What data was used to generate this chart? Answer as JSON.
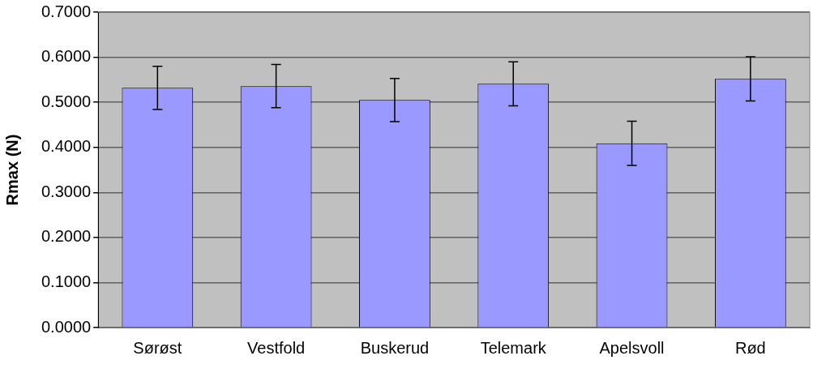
{
  "chart_data": {
    "type": "bar",
    "ylabel": "Rmax (N)",
    "categories": [
      "Sørøst",
      "Vestfold",
      "Buskerud",
      "Telemark",
      "Apelsvoll",
      "Rød"
    ],
    "values": [
      0.532,
      0.536,
      0.505,
      0.541,
      0.409,
      0.552
    ],
    "errors": [
      0.048,
      0.048,
      0.048,
      0.049,
      0.049,
      0.049
    ],
    "color": "#9999ff",
    "ylim": [
      0,
      0.7
    ],
    "yticks": [
      {
        "value": 0,
        "label": "0.0000"
      },
      {
        "value": 0.1,
        "label": "0.1000"
      },
      {
        "value": 0.2,
        "label": "0.2000"
      },
      {
        "value": 0.3,
        "label": "0.3000"
      },
      {
        "value": 0.4,
        "label": "0.4000"
      },
      {
        "value": 0.5,
        "label": "0.5000"
      },
      {
        "value": 0.6,
        "label": "0.6000"
      },
      {
        "value": 0.7,
        "label": "0.7000"
      }
    ],
    "grid": "y",
    "legend": false
  }
}
